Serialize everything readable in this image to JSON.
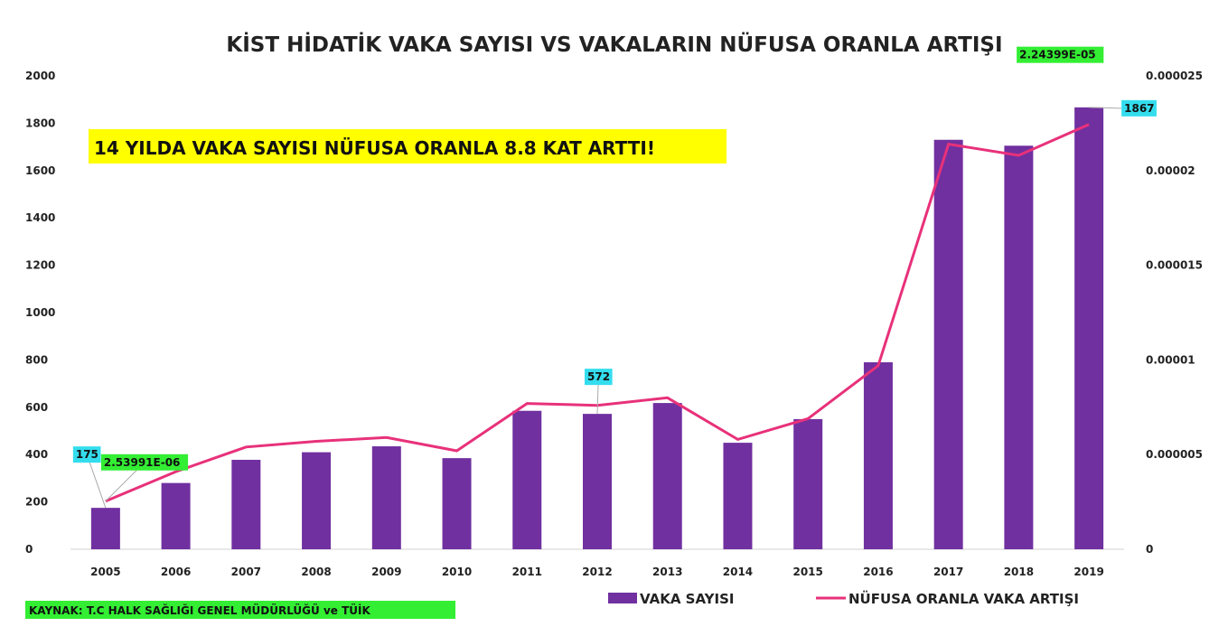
{
  "colors": {
    "bar": "#7030a0",
    "line": "#e8317a",
    "callout_bg": "#ffff00",
    "rate_label_bg": "#33ee33",
    "count_label_bg": "#33ddee",
    "source_bg": "#33ee33"
  },
  "callout": "14 YILDA VAKA SAYISI NÜFUSA ORANLA 8.8 KAT ARTTI!",
  "source": "KAYNAK: T.C HALK SAĞLIĞI GENEL MÜDÜRLÜĞÜ ve TÜİK",
  "chart_data": {
    "type": "bar",
    "title": "KİST HİDATİK VAKA SAYISI VS VAKALARIN NÜFUSA ORANLA ARTIŞI",
    "categories": [
      "2005",
      "2006",
      "2007",
      "2008",
      "2009",
      "2010",
      "2011",
      "2012",
      "2013",
      "2014",
      "2015",
      "2016",
      "2017",
      "2018",
      "2019"
    ],
    "series": [
      {
        "name": "VAKA SAYISI",
        "type": "bar",
        "axis": "left",
        "values": [
          175,
          280,
          378,
          410,
          435,
          385,
          585,
          572,
          618,
          450,
          550,
          790,
          1730,
          1705,
          1867
        ]
      },
      {
        "name": "NÜFUSA ORANLA VAKA ARTIŞI",
        "type": "line",
        "axis": "right",
        "values": [
          2.54e-06,
          4.1e-06,
          5.4e-06,
          5.7e-06,
          5.9e-06,
          5.2e-06,
          7.7e-06,
          7.6e-06,
          8e-06,
          5.8e-06,
          6.9e-06,
          9.7e-06,
          2.14e-05,
          2.08e-05,
          2.24399e-05
        ]
      }
    ],
    "y_left": {
      "ylim": [
        0,
        2000
      ],
      "ticks": [
        "0",
        "200",
        "400",
        "600",
        "800",
        "1000",
        "1200",
        "1400",
        "1600",
        "1800",
        "2000"
      ]
    },
    "y_right": {
      "ylim": [
        0,
        2.5e-05
      ],
      "ticks": [
        "0",
        "0.000005",
        "0.00001",
        "0.000015",
        "0.00002",
        "0.000025"
      ]
    },
    "data_labels": [
      {
        "series": 0,
        "index": 0,
        "text": "175"
      },
      {
        "series": 0,
        "index": 7,
        "text": "572"
      },
      {
        "series": 0,
        "index": 14,
        "text": "1867"
      },
      {
        "series": 1,
        "index": 0,
        "text": "2.53991E-06"
      },
      {
        "series": 1,
        "index": 14,
        "text": "2.24399E-05"
      }
    ],
    "grid": false,
    "legend": "bottom-right"
  }
}
